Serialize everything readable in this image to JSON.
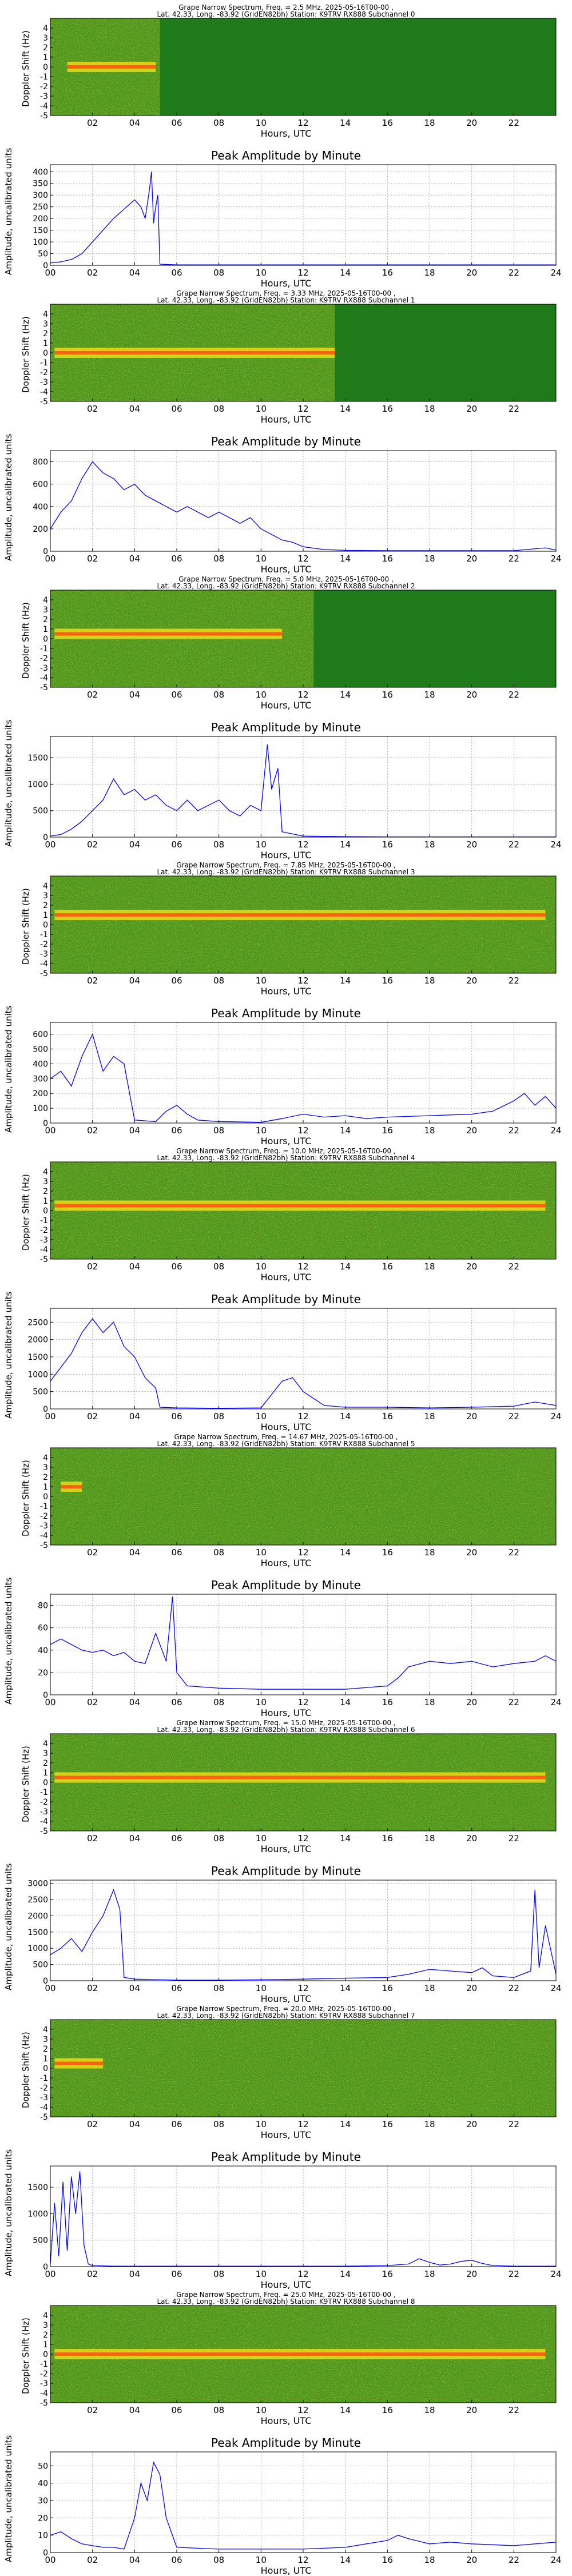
{
  "chart_data": [
    {
      "type": "heatmap",
      "title_line1": "Grape Narrow Spectrum, Freq. = 2.5 MHz, 2025-05-16T00-00 ,",
      "title_line2": "Lat. 42.33, Long. -83.92 (GridEN82bh) Station: K9TRV RX888 Subchannel 0",
      "xlabel": "Hours, UTC",
      "ylabel": "Doppler Shift (Hz)",
      "x_ticks": [
        "02",
        "04",
        "06",
        "08",
        "10",
        "12",
        "14",
        "16",
        "18",
        "20",
        "22"
      ],
      "y_ticks": [
        "4",
        "3",
        "2",
        "1",
        "0",
        "-1",
        "-2",
        "-3",
        "-4",
        "-5"
      ],
      "xlim": [
        0,
        24
      ],
      "ylim": [
        -5,
        5
      ],
      "active_window": [
        0,
        5.2
      ],
      "trace_window": [
        0.8,
        5.0
      ],
      "trace_level": 0
    },
    {
      "type": "line",
      "title": "Peak Amplitude by Minute",
      "xlabel": "Hours, UTC",
      "ylabel": "Amplitude, uncalibrated units",
      "x_ticks": [
        "00",
        "02",
        "04",
        "06",
        "08",
        "10",
        "12",
        "14",
        "16",
        "18",
        "20",
        "22",
        "24"
      ],
      "y_ticks": [
        "0",
        "50",
        "100",
        "150",
        "200",
        "250",
        "300",
        "350",
        "400"
      ],
      "xlim": [
        0,
        24
      ],
      "ylim": [
        0,
        430
      ],
      "x": [
        0,
        0.5,
        1,
        1.5,
        2,
        2.5,
        3,
        3.5,
        4,
        4.3,
        4.5,
        4.7,
        4.8,
        4.9,
        5.0,
        5.1,
        5.2,
        6,
        8,
        10,
        12,
        14,
        16,
        18,
        20,
        22,
        24
      ],
      "values": [
        10,
        15,
        25,
        50,
        100,
        150,
        200,
        240,
        280,
        250,
        200,
        320,
        400,
        180,
        250,
        300,
        5,
        2,
        2,
        2,
        2,
        2,
        2,
        2,
        2,
        2,
        2
      ]
    },
    {
      "type": "heatmap",
      "title_line1": "Grape Narrow Spectrum, Freq. = 3.33 MHz, 2025-05-16T00-00 ,",
      "title_line2": "Lat. 42.33, Long. -83.92 (GridEN82bh) Station: K9TRV RX888 Subchannel 1",
      "xlabel": "Hours, UTC",
      "ylabel": "Doppler Shift (Hz)",
      "x_ticks": [
        "02",
        "04",
        "06",
        "08",
        "10",
        "12",
        "14",
        "16",
        "18",
        "20",
        "22"
      ],
      "y_ticks": [
        "4",
        "3",
        "2",
        "1",
        "0",
        "-1",
        "-2",
        "-3",
        "-4",
        "-5"
      ],
      "xlim": [
        0,
        24
      ],
      "ylim": [
        -5,
        5
      ],
      "active_window": [
        0,
        13.5
      ],
      "trace_window": [
        0.2,
        13.5
      ],
      "trace_level": 0
    },
    {
      "type": "line",
      "title": "Peak Amplitude by Minute",
      "xlabel": "Hours, UTC",
      "ylabel": "Amplitude, uncalibrated units",
      "x_ticks": [
        "00",
        "02",
        "04",
        "06",
        "08",
        "10",
        "12",
        "14",
        "16",
        "18",
        "20",
        "22",
        "24"
      ],
      "y_ticks": [
        "0",
        "200",
        "400",
        "600",
        "800"
      ],
      "xlim": [
        0,
        24
      ],
      "ylim": [
        0,
        900
      ],
      "x": [
        0,
        0.5,
        1,
        1.5,
        2,
        2.5,
        3,
        3.5,
        4,
        4.5,
        5,
        5.5,
        6,
        6.5,
        7,
        7.5,
        8,
        8.5,
        9,
        9.5,
        10,
        10.5,
        11,
        11.5,
        12,
        13,
        14,
        16,
        18,
        20,
        22,
        23.5,
        24
      ],
      "values": [
        200,
        350,
        450,
        650,
        800,
        700,
        650,
        550,
        600,
        500,
        450,
        400,
        350,
        400,
        350,
        300,
        350,
        300,
        250,
        300,
        200,
        150,
        100,
        80,
        40,
        15,
        8,
        5,
        5,
        5,
        5,
        30,
        10
      ]
    },
    {
      "type": "heatmap",
      "title_line1": "Grape Narrow Spectrum, Freq. = 5.0 MHz, 2025-05-16T00-00 ,",
      "title_line2": "Lat. 42.33, Long. -83.92 (GridEN82bh) Station: K9TRV RX888 Subchannel 2",
      "xlabel": "Hours, UTC",
      "ylabel": "Doppler Shift (Hz)",
      "x_ticks": [
        "02",
        "04",
        "06",
        "08",
        "10",
        "12",
        "14",
        "16",
        "18",
        "20",
        "22"
      ],
      "y_ticks": [
        "4",
        "3",
        "2",
        "1",
        "0",
        "-1",
        "-2",
        "-3",
        "-4",
        "-5"
      ],
      "xlim": [
        0,
        24
      ],
      "ylim": [
        -5,
        5
      ],
      "active_window": [
        0,
        12.5
      ],
      "trace_window": [
        0.2,
        11
      ],
      "trace_level": 0.5
    },
    {
      "type": "line",
      "title": "Peak Amplitude by Minute",
      "xlabel": "Hours, UTC",
      "ylabel": "Amplitude, uncalibrated units",
      "x_ticks": [
        "00",
        "02",
        "04",
        "06",
        "08",
        "10",
        "12",
        "14",
        "16",
        "18",
        "20",
        "22",
        "24"
      ],
      "y_ticks": [
        "0",
        "500",
        "1000",
        "1500"
      ],
      "xlim": [
        0,
        24
      ],
      "ylim": [
        0,
        1900
      ],
      "x": [
        0,
        0.5,
        1,
        1.5,
        2,
        2.5,
        3,
        3.5,
        4,
        4.5,
        5,
        5.5,
        6,
        6.5,
        7,
        7.5,
        8,
        8.5,
        9,
        9.5,
        10,
        10.3,
        10.5,
        10.8,
        11,
        12,
        14,
        16,
        18,
        20,
        22,
        24
      ],
      "values": [
        20,
        50,
        150,
        300,
        500,
        700,
        1100,
        800,
        900,
        700,
        800,
        600,
        500,
        700,
        500,
        600,
        700,
        500,
        400,
        600,
        500,
        1750,
        900,
        1300,
        100,
        20,
        10,
        5,
        5,
        5,
        5,
        5
      ]
    },
    {
      "type": "heatmap",
      "title_line1": "Grape Narrow Spectrum, Freq. = 7.85 MHz, 2025-05-16T00-00 ,",
      "title_line2": "Lat. 42.33, Long. -83.92 (GridEN82bh) Station: K9TRV RX888 Subchannel 3",
      "xlabel": "Hours, UTC",
      "ylabel": "Doppler Shift (Hz)",
      "x_ticks": [
        "02",
        "04",
        "06",
        "08",
        "10",
        "12",
        "14",
        "16",
        "18",
        "20",
        "22"
      ],
      "y_ticks": [
        "4",
        "3",
        "2",
        "1",
        "0",
        "-1",
        "-2",
        "-3",
        "-4",
        "-5"
      ],
      "xlim": [
        0,
        24
      ],
      "ylim": [
        -5,
        5
      ],
      "active_window": [
        0,
        24
      ],
      "trace_window": [
        0.2,
        23.5
      ],
      "trace_level": 1
    },
    {
      "type": "line",
      "title": "Peak Amplitude by Minute",
      "xlabel": "Hours, UTC",
      "ylabel": "Amplitude, uncalibrated units",
      "x_ticks": [
        "00",
        "02",
        "04",
        "06",
        "08",
        "10",
        "12",
        "14",
        "16",
        "18",
        "20",
        "22",
        "24"
      ],
      "y_ticks": [
        "0",
        "100",
        "200",
        "300",
        "400",
        "500",
        "600"
      ],
      "xlim": [
        0,
        24
      ],
      "ylim": [
        0,
        680
      ],
      "x": [
        0,
        0.5,
        1,
        1.5,
        2,
        2.5,
        3,
        3.5,
        4,
        5,
        5.5,
        6,
        6.5,
        7,
        8,
        10,
        11,
        12,
        13,
        14,
        15,
        16,
        18,
        20,
        21,
        22,
        22.5,
        23,
        23.5,
        24
      ],
      "values": [
        300,
        350,
        250,
        450,
        600,
        350,
        450,
        400,
        20,
        10,
        80,
        120,
        60,
        20,
        10,
        5,
        30,
        60,
        40,
        50,
        30,
        40,
        50,
        60,
        80,
        150,
        200,
        120,
        180,
        100
      ]
    },
    {
      "type": "heatmap",
      "title_line1": "Grape Narrow Spectrum, Freq. = 10.0 MHz, 2025-05-16T00-00 ,",
      "title_line2": "Lat. 42.33, Long. -83.92 (GridEN82bh) Station: K9TRV RX888 Subchannel 4",
      "xlabel": "Hours, UTC",
      "ylabel": "Doppler Shift (Hz)",
      "x_ticks": [
        "02",
        "04",
        "06",
        "08",
        "10",
        "12",
        "14",
        "16",
        "18",
        "20",
        "22"
      ],
      "y_ticks": [
        "4",
        "3",
        "2",
        "1",
        "0",
        "-1",
        "-2",
        "-3",
        "-4",
        "-5"
      ],
      "xlim": [
        0,
        24
      ],
      "ylim": [
        -5,
        5
      ],
      "active_window": [
        0,
        24
      ],
      "trace_window": [
        0.2,
        23.5
      ],
      "trace_level": 0.5
    },
    {
      "type": "line",
      "title": "Peak Amplitude by Minute",
      "xlabel": "Hours, UTC",
      "ylabel": "Amplitude, uncalibrated units",
      "x_ticks": [
        "00",
        "02",
        "04",
        "06",
        "08",
        "10",
        "12",
        "14",
        "16",
        "18",
        "20",
        "22",
        "24"
      ],
      "y_ticks": [
        "0",
        "500",
        "1000",
        "1500",
        "2000",
        "2500"
      ],
      "xlim": [
        0,
        24
      ],
      "ylim": [
        0,
        2900
      ],
      "x": [
        0,
        0.5,
        1,
        1.5,
        2,
        2.5,
        3,
        3.5,
        4,
        4.5,
        5,
        5.2,
        6,
        8,
        10,
        11,
        11.5,
        12,
        12.5,
        13,
        14,
        16,
        18,
        20,
        22,
        23,
        24
      ],
      "values": [
        800,
        1200,
        1600,
        2200,
        2600,
        2200,
        2500,
        1800,
        1500,
        900,
        600,
        50,
        30,
        20,
        30,
        800,
        900,
        500,
        300,
        100,
        50,
        50,
        30,
        50,
        80,
        200,
        100
      ]
    },
    {
      "type": "heatmap",
      "title_line1": "Grape Narrow Spectrum, Freq. = 14.67 MHz, 2025-05-16T00-00 ,",
      "title_line2": "Lat. 42.33, Long. -83.92 (GridEN82bh) Station: K9TRV RX888 Subchannel 5",
      "xlabel": "Hours, UTC",
      "ylabel": "Doppler Shift (Hz)",
      "x_ticks": [
        "02",
        "04",
        "06",
        "08",
        "10",
        "12",
        "14",
        "16",
        "18",
        "20",
        "22"
      ],
      "y_ticks": [
        "4",
        "3",
        "2",
        "1",
        "0",
        "-1",
        "-2",
        "-3",
        "-4",
        "-5"
      ],
      "xlim": [
        0,
        24
      ],
      "ylim": [
        -5,
        5
      ],
      "active_window": [
        0,
        24
      ],
      "trace_window": [
        0.5,
        1.5
      ],
      "trace_level": 1
    },
    {
      "type": "line",
      "title": "Peak Amplitude by Minute",
      "xlabel": "Hours, UTC",
      "ylabel": "Amplitude, uncalibrated units",
      "x_ticks": [
        "00",
        "02",
        "04",
        "06",
        "08",
        "10",
        "12",
        "14",
        "16",
        "18",
        "20",
        "22",
        "24"
      ],
      "y_ticks": [
        "0",
        "20",
        "40",
        "60",
        "80"
      ],
      "xlim": [
        0,
        24
      ],
      "ylim": [
        0,
        90
      ],
      "x": [
        0,
        0.5,
        1,
        1.5,
        2,
        2.5,
        3,
        3.5,
        4,
        4.5,
        5,
        5.5,
        5.8,
        6,
        6.5,
        8,
        10,
        12,
        14,
        16,
        16.5,
        17,
        18,
        19,
        20,
        21,
        22,
        23,
        23.5,
        24
      ],
      "values": [
        45,
        50,
        45,
        40,
        38,
        40,
        35,
        38,
        30,
        28,
        55,
        30,
        88,
        20,
        8,
        6,
        5,
        5,
        5,
        8,
        15,
        25,
        30,
        28,
        30,
        25,
        28,
        30,
        35,
        30
      ]
    },
    {
      "type": "heatmap",
      "title_line1": "Grape Narrow Spectrum, Freq. = 15.0 MHz, 2025-05-16T00-00 ,",
      "title_line2": "Lat. 42.33, Long. -83.92 (GridEN82bh) Station: K9TRV RX888 Subchannel 6",
      "xlabel": "Hours, UTC",
      "ylabel": "Doppler Shift (Hz)",
      "x_ticks": [
        "02",
        "04",
        "06",
        "08",
        "10",
        "12",
        "14",
        "16",
        "18",
        "20",
        "22"
      ],
      "y_ticks": [
        "4",
        "3",
        "2",
        "1",
        "0",
        "-1",
        "-2",
        "-3",
        "-4",
        "-5"
      ],
      "xlim": [
        0,
        24
      ],
      "ylim": [
        -5,
        5
      ],
      "active_window": [
        0,
        24
      ],
      "trace_window": [
        0.2,
        23.5
      ],
      "trace_level": 0.5
    },
    {
      "type": "line",
      "title": "Peak Amplitude by Minute",
      "xlabel": "Hours, UTC",
      "ylabel": "Amplitude, uncalibrated units",
      "x_ticks": [
        "00",
        "02",
        "04",
        "06",
        "08",
        "10",
        "12",
        "14",
        "16",
        "18",
        "20",
        "22",
        "24"
      ],
      "y_ticks": [
        "0",
        "500",
        "1000",
        "1500",
        "2000",
        "2500",
        "3000"
      ],
      "xlim": [
        0,
        24
      ],
      "ylim": [
        0,
        3100
      ],
      "x": [
        0,
        0.5,
        1,
        1.5,
        2,
        2.5,
        3,
        3.3,
        3.5,
        4,
        6,
        8,
        10,
        12,
        14,
        16,
        17,
        18,
        19,
        20,
        20.5,
        21,
        22,
        22.8,
        23,
        23.2,
        23.5,
        24
      ],
      "values": [
        800,
        1000,
        1300,
        900,
        1500,
        2000,
        2800,
        2200,
        100,
        50,
        20,
        20,
        30,
        50,
        80,
        100,
        200,
        350,
        300,
        250,
        400,
        150,
        100,
        300,
        2800,
        400,
        1700,
        200
      ]
    },
    {
      "type": "heatmap",
      "title_line1": "Grape Narrow Spectrum, Freq. = 20.0 MHz, 2025-05-16T00-00 ,",
      "title_line2": "Lat. 42.33, Long. -83.92 (GridEN82bh) Station: K9TRV RX888 Subchannel 7",
      "xlabel": "Hours, UTC",
      "ylabel": "Doppler Shift (Hz)",
      "x_ticks": [
        "02",
        "04",
        "06",
        "08",
        "10",
        "12",
        "14",
        "16",
        "18",
        "20",
        "22"
      ],
      "y_ticks": [
        "4",
        "3",
        "2",
        "1",
        "0",
        "-1",
        "-2",
        "-3",
        "-4",
        "-5"
      ],
      "xlim": [
        0,
        24
      ],
      "ylim": [
        -5,
        5
      ],
      "active_window": [
        0,
        24
      ],
      "trace_window": [
        0.2,
        2.5
      ],
      "trace_level": 0.5
    },
    {
      "type": "line",
      "title": "Peak Amplitude by Minute",
      "xlabel": "Hours, UTC",
      "ylabel": "Amplitude, uncalibrated units",
      "x_ticks": [
        "00",
        "02",
        "04",
        "06",
        "08",
        "10",
        "12",
        "14",
        "16",
        "18",
        "20",
        "22",
        "24"
      ],
      "y_ticks": [
        "0",
        "500",
        "1000",
        "1500"
      ],
      "xlim": [
        0,
        24
      ],
      "ylim": [
        0,
        1900
      ],
      "x": [
        0,
        0.2,
        0.4,
        0.6,
        0.8,
        1.0,
        1.2,
        1.4,
        1.6,
        1.8,
        2,
        3,
        6,
        10,
        14,
        16,
        17,
        17.5,
        18,
        18.5,
        19,
        19.5,
        20,
        20.5,
        21,
        22,
        24
      ],
      "values": [
        50,
        1200,
        200,
        1600,
        300,
        1700,
        1000,
        1800,
        400,
        50,
        20,
        10,
        10,
        10,
        10,
        20,
        50,
        150,
        80,
        30,
        50,
        100,
        120,
        60,
        20,
        10,
        10
      ]
    },
    {
      "type": "heatmap",
      "title_line1": "Grape Narrow Spectrum, Freq. = 25.0 MHz, 2025-05-16T00-00 ,",
      "title_line2": "Lat. 42.33, Long. -83.92 (GridEN82bh) Station: K9TRV RX888 Subchannel 8",
      "xlabel": "Hours, UTC",
      "ylabel": "Doppler Shift (Hz)",
      "x_ticks": [
        "02",
        "04",
        "06",
        "08",
        "10",
        "12",
        "14",
        "16",
        "18",
        "20",
        "22"
      ],
      "y_ticks": [
        "4",
        "3",
        "2",
        "1",
        "0",
        "-1",
        "-2",
        "-3",
        "-4",
        "-5"
      ],
      "xlim": [
        0,
        24
      ],
      "ylim": [
        -5,
        5
      ],
      "active_window": [
        0,
        24
      ],
      "trace_window": [
        0.2,
        23.5
      ],
      "trace_level": 0
    },
    {
      "type": "line",
      "title": "Peak Amplitude by Minute",
      "xlabel": "Hours, UTC",
      "ylabel": "Amplitude, uncalibrated units",
      "x_ticks": [
        "00",
        "02",
        "04",
        "06",
        "08",
        "10",
        "12",
        "14",
        "16",
        "18",
        "20",
        "22",
        "24"
      ],
      "y_ticks": [
        "0",
        "10",
        "20",
        "30",
        "40",
        "50"
      ],
      "xlim": [
        0,
        24
      ],
      "ylim": [
        0,
        58
      ],
      "x": [
        0,
        0.5,
        1,
        1.5,
        2,
        2.5,
        3,
        3.5,
        4,
        4.3,
        4.6,
        4.9,
        5.2,
        5.5,
        6,
        8,
        10,
        12,
        14,
        15,
        16,
        16.5,
        17,
        18,
        19,
        20,
        22,
        24
      ],
      "values": [
        10,
        12,
        8,
        5,
        4,
        3,
        3,
        2,
        20,
        40,
        30,
        52,
        45,
        20,
        3,
        2,
        2,
        2,
        3,
        5,
        7,
        10,
        8,
        5,
        6,
        5,
        4,
        6
      ]
    }
  ]
}
